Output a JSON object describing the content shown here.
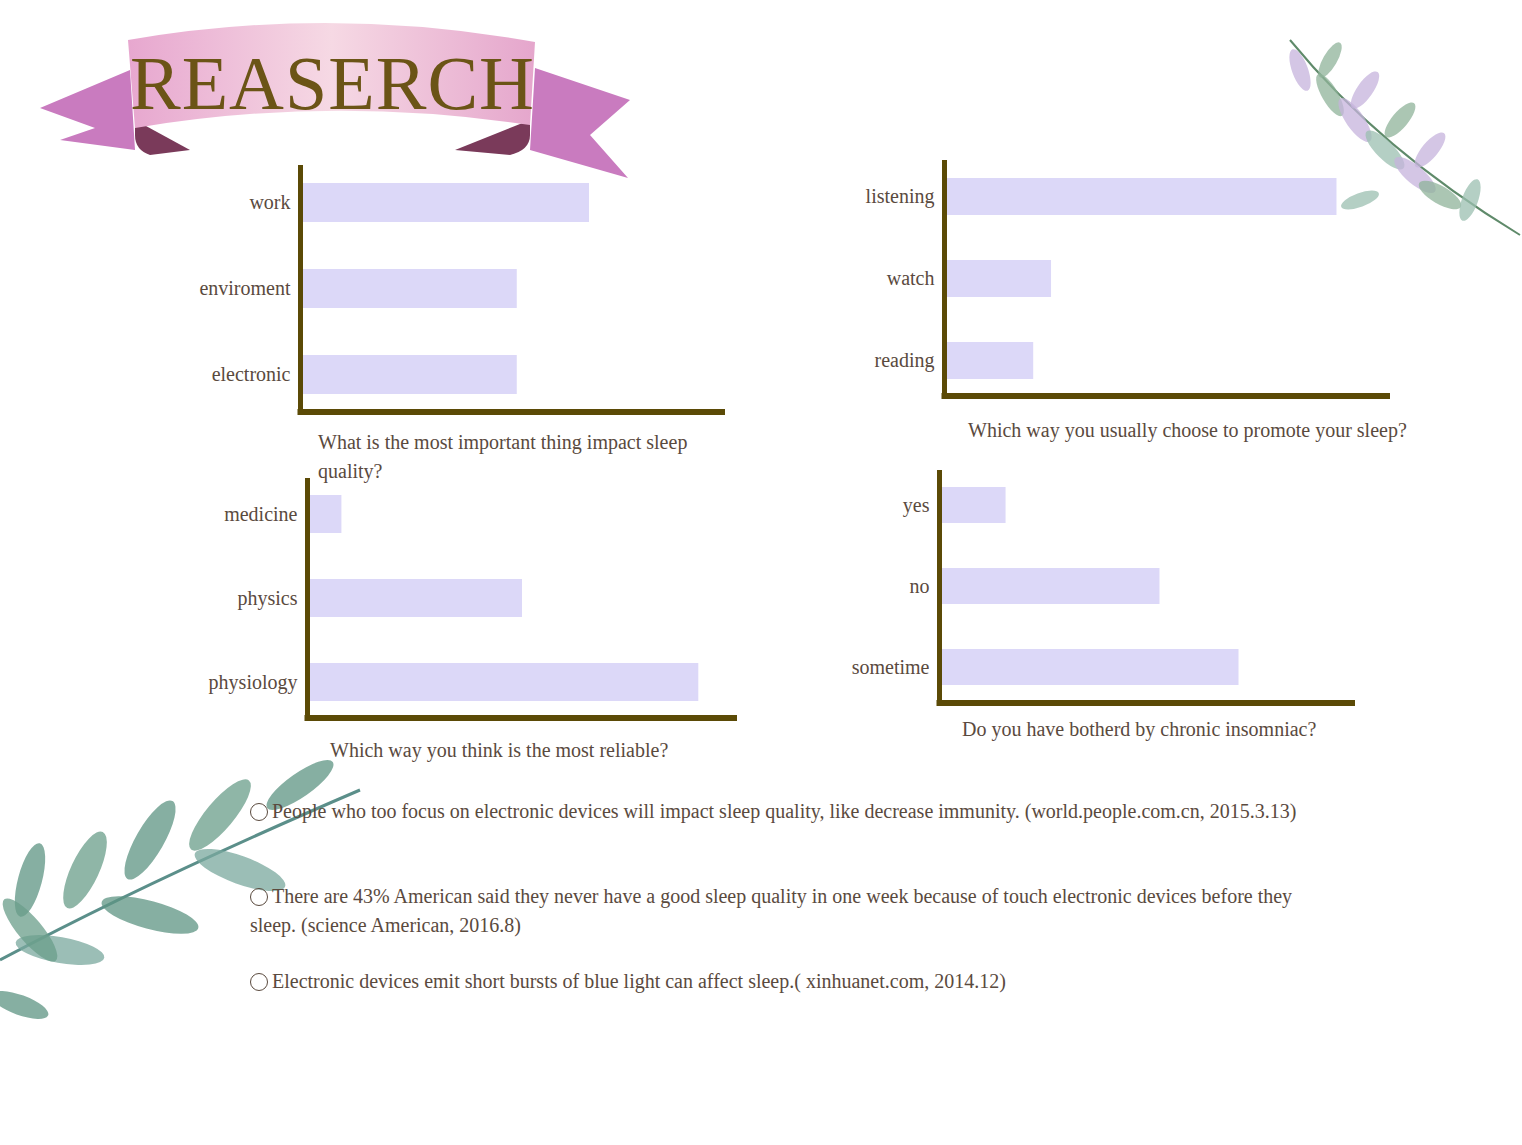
{
  "title": "REASERCH",
  "chart_data": [
    {
      "type": "bar",
      "orientation": "horizontal",
      "title": "What is the most important thing impact sleep quality?",
      "categories": [
        "work",
        "enviroment",
        "electronic"
      ],
      "values": [
        68,
        51,
        51
      ],
      "color": "#dcd8f8",
      "xlim": [
        0,
        100
      ],
      "tick_labels": "y"
    },
    {
      "type": "bar",
      "orientation": "horizontal",
      "title": "Which way you usually choose to promote your sleep?",
      "categories": [
        "listening",
        "watch",
        "reading"
      ],
      "values": [
        88,
        24,
        20
      ],
      "color": "#dcd8f8",
      "xlim": [
        0,
        100
      ],
      "tick_labels": "y"
    },
    {
      "type": "bar",
      "orientation": "horizontal",
      "title": "Which way you think is the most reliable?",
      "categories": [
        "medicine",
        "physics",
        "physiology"
      ],
      "values": [
        8,
        50,
        91
      ],
      "color": "#dcd8f8",
      "xlim": [
        0,
        100
      ],
      "tick_labels": "y"
    },
    {
      "type": "bar",
      "orientation": "horizontal",
      "title": "Do you have botherd by chronic insomniac?",
      "categories": [
        "yes",
        "no",
        "sometime"
      ],
      "values": [
        16,
        53,
        72
      ],
      "color": "#dcd8f8",
      "xlim": [
        0,
        100
      ],
      "tick_labels": "y"
    }
  ],
  "notes": [
    "People who too focus on electronic devices will impact sleep quality, like decrease immunity. (world.people.com.cn, 2015.3.13)",
    "There are 43% American said they never have a good sleep quality in one week because of touch electronic devices before they sleep.  (science American, 2016.8)",
    "Electronic devices emit short bursts of blue light can affect sleep.( xinhuanet.com, 2014.12)"
  ]
}
